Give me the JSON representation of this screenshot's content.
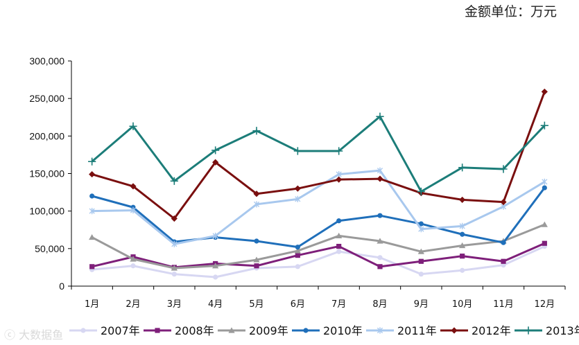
{
  "unit_label": "金额单位：万元",
  "watermark": "ⓒ 大数据鱼",
  "chart_data": {
    "type": "line",
    "title": "",
    "xlabel": "",
    "ylabel": "",
    "ylim": [
      0,
      300000
    ],
    "yticks": [
      0,
      50000,
      100000,
      150000,
      200000,
      250000,
      300000
    ],
    "ytick_labels": [
      "0",
      "50,000",
      "100,000",
      "150,000",
      "200,000",
      "250,000",
      "300,000"
    ],
    "grid": false,
    "legend_position": "bottom",
    "categories": [
      "1月",
      "2月",
      "3月",
      "4月",
      "5月",
      "6月",
      "7月",
      "8月",
      "9月",
      "10月",
      "11月",
      "12月"
    ],
    "series": [
      {
        "name": "2007年",
        "color": "#d7d7f2",
        "marker": "circle",
        "values": [
          22000,
          27000,
          16000,
          12000,
          24000,
          26000,
          46000,
          38000,
          16000,
          21000,
          28000,
          53000
        ]
      },
      {
        "name": "2008年",
        "color": "#7e1f7a",
        "marker": "square",
        "values": [
          26000,
          39000,
          25000,
          30000,
          27000,
          41000,
          53000,
          26000,
          33000,
          40000,
          33000,
          57000
        ]
      },
      {
        "name": "2009年",
        "color": "#9a9a9a",
        "marker": "triangle",
        "values": [
          65000,
          36000,
          24000,
          27000,
          35000,
          47000,
          67000,
          60000,
          46000,
          54000,
          60000,
          82000
        ]
      },
      {
        "name": "2010年",
        "color": "#1f6fba",
        "marker": "circle",
        "values": [
          120000,
          105000,
          59000,
          65000,
          60000,
          52000,
          87000,
          94000,
          83000,
          69000,
          58000,
          131000
        ]
      },
      {
        "name": "2011年",
        "color": "#a8c8ee",
        "marker": "asterisk",
        "values": [
          100000,
          101000,
          56000,
          67000,
          109000,
          116000,
          149000,
          154000,
          76000,
          80000,
          106000,
          139000
        ]
      },
      {
        "name": "2012年",
        "color": "#7a0f0f",
        "marker": "diamond",
        "values": [
          149000,
          133000,
          90000,
          165000,
          123000,
          130000,
          142000,
          143000,
          124000,
          115000,
          112000,
          259000
        ]
      },
      {
        "name": "2013年",
        "color": "#1c7d79",
        "marker": "plus",
        "values": [
          166000,
          213000,
          140000,
          181000,
          207000,
          180000,
          180000,
          226000,
          126000,
          158000,
          156000,
          214000
        ]
      }
    ]
  }
}
